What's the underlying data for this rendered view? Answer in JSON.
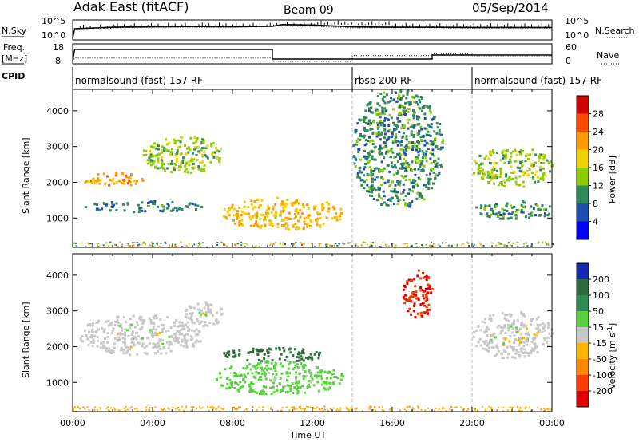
{
  "header": {
    "site": "Adak East (fitACF)",
    "beam": "Beam 09",
    "date": "05/Sep/2014"
  },
  "panels": {
    "nsky_label": "N.Sky",
    "nsearch_label": "N.Search",
    "freq_label": "Freq.",
    "freq_unit": "[MHz]",
    "nave_label": "Nave",
    "cpid_label": "CPID",
    "nsky_ticks": [
      "10^5",
      "10^0"
    ],
    "nsearch_ticks": [
      "10^5",
      "10^0"
    ],
    "freq_ticks": [
      "18",
      "8"
    ],
    "nave_ticks": [
      "60",
      "0"
    ],
    "cpid_segments": [
      {
        "label": "normalsound (fast) 157 RF",
        "start_hour": 0,
        "end_hour": 14
      },
      {
        "label": "rbsp 200 RF",
        "start_hour": 14,
        "end_hour": 20
      },
      {
        "label": "normalsound (fast) 157 RF",
        "start_hour": 20,
        "end_hour": 24
      }
    ]
  },
  "power_colorbar": {
    "label": "Power [dB]",
    "ticks": [
      "28",
      "24",
      "20",
      "16",
      "12",
      "8",
      "4"
    ],
    "colors": [
      "#d40000",
      "#ff4a00",
      "#ff9a00",
      "#f3d000",
      "#8ccc00",
      "#2e8b57",
      "#1e4fb0",
      "#0000ff"
    ]
  },
  "velocity_colorbar": {
    "label": "Velocity [m s",
    "label_exp": "-1",
    "label_end": "]",
    "ticks": [
      "200",
      "100",
      "50",
      "15",
      "-15",
      "-50",
      "-100",
      "-200"
    ],
    "colors": [
      "#1428b4",
      "#2e6b3c",
      "#2e8b57",
      "#58d23c",
      "#c8c8c8",
      "#ffb400",
      "#ff8a00",
      "#ff3c00",
      "#e00000"
    ]
  },
  "chart_data": [
    {
      "type": "line",
      "title": "N.Sky / N.Search",
      "x_unit": "hours UT",
      "xlim": [
        0,
        24
      ],
      "series": [
        {
          "name": "N.Sky",
          "x": [
            0,
            0.1,
            2,
            4,
            6,
            8,
            10,
            10.5,
            12,
            14,
            16,
            18,
            20,
            22,
            24
          ],
          "y": [
            1,
            1000,
            3000,
            4000,
            5000,
            4000,
            6000,
            20000,
            15000,
            4000,
            3000,
            3000,
            2500,
            2500,
            2500
          ]
        },
        {
          "name": "N.Search",
          "x": [
            0,
            0.1,
            2,
            4,
            6,
            8,
            10,
            12,
            14,
            16,
            18,
            20,
            22,
            24
          ],
          "y": [
            1,
            900,
            2000,
            3000,
            3000,
            3000,
            8000,
            6000,
            2000,
            2000,
            2000,
            1500,
            1500,
            1500
          ]
        }
      ]
    },
    {
      "type": "line",
      "title": "Freq. [MHz] / Nave",
      "xlim": [
        0,
        24
      ],
      "series": [
        {
          "name": "Freq.",
          "x": [
            0,
            0.1,
            10,
            10,
            18,
            18,
            24
          ],
          "y": [
            8,
            15.5,
            15.5,
            9.5,
            9.5,
            12,
            12
          ]
        },
        {
          "name": "Nave",
          "x": [
            0,
            0.1,
            10,
            10,
            14,
            14,
            18,
            18,
            20,
            20,
            24
          ],
          "y": [
            0,
            13,
            13,
            0,
            0,
            22,
            22,
            28,
            28,
            18,
            18
          ]
        }
      ]
    },
    {
      "type": "heatmap",
      "title": "Power",
      "xlabel": "Time UT",
      "ylabel": "Slant Range [km]",
      "xlim": [
        0,
        24
      ],
      "ylim": [
        180,
        4600
      ],
      "x_ticks": [
        "00:00",
        "04:00",
        "08:00",
        "12:00",
        "16:00",
        "20:00",
        "00:00"
      ],
      "y_ticks": [
        1000,
        2000,
        3000,
        4000
      ],
      "colorbar": "Power [dB]",
      "regions": [
        {
          "hours": [
            0.5,
            3.5
          ],
          "range_km": [
            1900,
            2300
          ],
          "power_db": 22
        },
        {
          "hours": [
            3.5,
            7.5
          ],
          "range_km": [
            2300,
            3300
          ],
          "power_db": 14
        },
        {
          "hours": [
            0.5,
            6.5
          ],
          "range_km": [
            1200,
            1500
          ],
          "power_db": 8
        },
        {
          "hours": [
            7.5,
            13.5
          ],
          "range_km": [
            700,
            1600
          ],
          "power_db": 20
        },
        {
          "hours": [
            14,
            18.5
          ],
          "range_km": [
            1300,
            4600
          ],
          "power_db": 10
        },
        {
          "hours": [
            20,
            24
          ],
          "range_km": [
            1900,
            3000
          ],
          "power_db": 14
        },
        {
          "hours": [
            20,
            24
          ],
          "range_km": [
            1000,
            1500
          ],
          "power_db": 10
        }
      ]
    },
    {
      "type": "heatmap",
      "title": "Velocity",
      "xlabel": "Time UT",
      "ylabel": "Slant Range [km]",
      "xlim": [
        0,
        24
      ],
      "ylim": [
        180,
        4600
      ],
      "x_ticks": [
        "00:00",
        "04:00",
        "08:00",
        "12:00",
        "16:00",
        "20:00",
        "00:00"
      ],
      "y_ticks": [
        1000,
        2000,
        3000,
        4000
      ],
      "colorbar": "Velocity [m s-1]",
      "regions": [
        {
          "hours": [
            0.3,
            6.5
          ],
          "range_km": [
            1800,
            2900
          ],
          "velocity_ms": 0
        },
        {
          "hours": [
            5.5,
            7.5
          ],
          "range_km": [
            2600,
            3300
          ],
          "velocity_ms": 0
        },
        {
          "hours": [
            7.5,
            12.5
          ],
          "range_km": [
            1600,
            2000
          ],
          "velocity_ms": 150
        },
        {
          "hours": [
            7,
            13.5
          ],
          "range_km": [
            700,
            1600
          ],
          "velocity_ms": 30
        },
        {
          "hours": [
            16.5,
            18
          ],
          "range_km": [
            2800,
            4200
          ],
          "velocity_ms": -200
        },
        {
          "hours": [
            20,
            24
          ],
          "range_km": [
            1700,
            3000
          ],
          "velocity_ms": 0
        }
      ]
    }
  ]
}
